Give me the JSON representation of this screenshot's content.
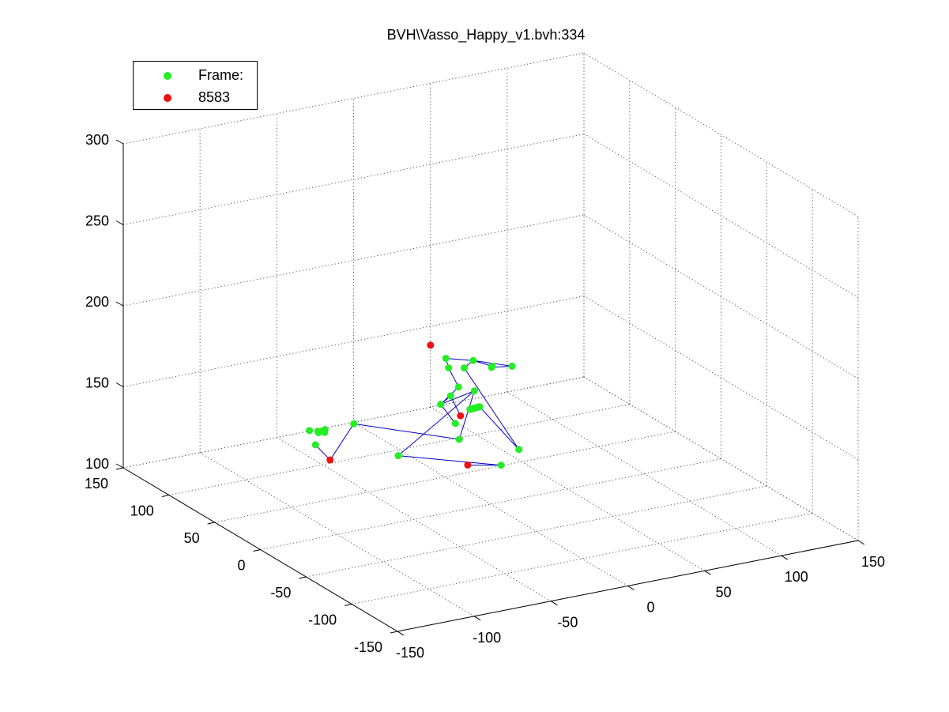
{
  "chart_data": {
    "type": "scatter",
    "title": "BVH\\Vasso_Happy_v1.bvh:334",
    "xlim": [
      -150,
      150
    ],
    "ylim": [
      -150,
      150
    ],
    "zlim": [
      100,
      300
    ],
    "x_ticks": [
      -150,
      -100,
      -50,
      0,
      50,
      100,
      150
    ],
    "y_ticks": [
      -150,
      -100,
      -50,
      0,
      50,
      100,
      150
    ],
    "z_ticks": [
      100,
      150,
      200,
      250,
      300
    ],
    "grid": true,
    "legend": {
      "placement": "top-left",
      "entries": [
        {
          "label": "Frame:",
          "color": "#00ff00"
        },
        {
          "label": "8583",
          "color": "#ff0000"
        }
      ]
    },
    "colors": {
      "joint": "#22ee22",
      "end_site": "#ee1111",
      "bone": "#0000cc",
      "grid": "#555555"
    },
    "joints": [
      {
        "x": 0.4,
        "y": 55.4,
        "z": 142.9
      },
      {
        "x": 1.1,
        "y": 19.7,
        "z": 163.1
      },
      {
        "x": -27.6,
        "y": -12.0,
        "z": 149.2
      },
      {
        "x": -67.5,
        "y": 36.4,
        "z": 150.0
      },
      {
        "x": -76.9,
        "y": 62.5,
        "z": 130.0
      },
      {
        "x": -28.6,
        "y": 53.1,
        "z": 117.4
      },
      {
        "x": 3.1,
        "y": -6.1,
        "z": 125.5
      },
      {
        "x": 9.7,
        "y": 55.0,
        "z": 129.5
      },
      {
        "x": 14.4,
        "y": 68.1,
        "z": 141.2
      },
      {
        "x": 10.3,
        "y": 52.5,
        "z": 152.7
      },
      {
        "x": 8.3,
        "y": 60.0,
        "z": 162.4
      },
      {
        "x": 5.3,
        "y": 58.0,
        "z": 169.5
      },
      {
        "x": 16.6,
        "y": 47.1,
        "z": 169.7
      },
      {
        "x": 4.7,
        "y": 36.9,
        "z": 170.8
      },
      {
        "x": 22.5,
        "y": 36.2,
        "z": 168.8
      },
      {
        "x": 16.0,
        "y": 25.9,
        "z": 172.8
      },
      {
        "x": 29.0,
        "y": 25.4,
        "z": 171.2
      },
      {
        "x": 2.7,
        "y": -26.3,
        "z": 142.1
      },
      {
        "x": -22.0,
        "y": -24.8,
        "z": 172.6
      },
      {
        "x": -23.1,
        "y": -25.5,
        "z": 172.9
      },
      {
        "x": -24.2,
        "y": -26.2,
        "z": 173.1
      },
      {
        "x": -25.3,
        "y": -26.9,
        "z": 173.4
      },
      {
        "x": -26.5,
        "y": -27.6,
        "z": 173.7
      },
      {
        "x": -27.6,
        "y": -28.3,
        "z": 173.9
      },
      {
        "x": -28.7,
        "y": -29.0,
        "z": 174.2
      },
      {
        "x": -29.8,
        "y": -29.7,
        "z": 174.5
      },
      {
        "x": -30.9,
        "y": -30.4,
        "z": 174.7
      },
      {
        "x": -32.0,
        "y": -31.1,
        "z": 175.0
      },
      {
        "x": -72.6,
        "y": 76.4,
        "z": 133.3
      },
      {
        "x": -69.6,
        "y": 72.2,
        "z": 133.7
      },
      {
        "x": -68.1,
        "y": 74.0,
        "z": 132.0
      },
      {
        "x": -66.6,
        "y": 73.5,
        "z": 132.7
      },
      {
        "x": -65.1,
        "y": 72.0,
        "z": 134.0
      },
      {
        "x": -63.6,
        "y": 74.8,
        "z": 131.0
      }
    ],
    "end_sites": [
      {
        "x": -87.5,
        "y": 28.7,
        "z": 134.0
      },
      {
        "x": -17.3,
        "y": -3.9,
        "z": 128.7
      },
      {
        "x": 13.5,
        "y": 55.7,
        "z": 133.3
      },
      {
        "x": -8.0,
        "y": 52.4,
        "z": 182.0
      }
    ],
    "bones": [
      [
        [
          0.4,
          55.4,
          142.9
        ],
        [
          1.1,
          19.7,
          163.1
        ]
      ],
      [
        [
          1.1,
          19.7,
          163.1
        ],
        [
          -27.6,
          -12.0,
          149.2
        ]
      ],
      [
        [
          -27.6,
          -12.0,
          149.2
        ],
        [
          -67.5,
          36.4,
          150.0
        ]
      ],
      [
        [
          -67.5,
          36.4,
          150.0
        ],
        [
          -87.5,
          28.7,
          134.0
        ]
      ],
      [
        [
          -87.5,
          28.7,
          134.0
        ],
        [
          -76.9,
          62.5,
          130.0
        ]
      ],
      [
        [
          1.1,
          19.7,
          163.1
        ],
        [
          -28.6,
          53.1,
          117.4
        ]
      ],
      [
        [
          -28.6,
          53.1,
          117.4
        ],
        [
          3.1,
          -6.1,
          125.5
        ]
      ],
      [
        [
          3.1,
          -6.1,
          125.5
        ],
        [
          -17.3,
          -3.9,
          128.7
        ]
      ],
      [
        [
          0.4,
          55.4,
          142.9
        ],
        [
          9.7,
          55.0,
          129.5
        ]
      ],
      [
        [
          0.4,
          55.4,
          142.9
        ],
        [
          14.4,
          68.1,
          141.2
        ]
      ],
      [
        [
          14.4,
          68.1,
          141.2
        ],
        [
          13.5,
          55.7,
          133.3
        ]
      ],
      [
        [
          0.4,
          55.4,
          142.9
        ],
        [
          10.3,
          52.5,
          152.7
        ]
      ],
      [
        [
          10.3,
          52.5,
          152.7
        ],
        [
          8.3,
          60.0,
          162.4
        ]
      ],
      [
        [
          8.3,
          60.0,
          162.4
        ],
        [
          5.3,
          58.0,
          169.5
        ]
      ],
      [
        [
          5.3,
          58.0,
          169.5
        ],
        [
          16.6,
          47.1,
          169.7
        ]
      ],
      [
        [
          16.6,
          47.1,
          169.7
        ],
        [
          29.0,
          25.4,
          171.2
        ]
      ],
      [
        [
          29.0,
          25.4,
          171.2
        ],
        [
          16.0,
          25.9,
          172.8
        ]
      ],
      [
        [
          16.6,
          47.1,
          169.7
        ],
        [
          4.7,
          36.9,
          170.8
        ]
      ],
      [
        [
          4.7,
          36.9,
          170.8
        ],
        [
          2.7,
          -26.3,
          142.1
        ]
      ],
      [
        [
          2.7,
          -26.3,
          142.1
        ],
        [
          -22.0,
          -24.8,
          172.6
        ]
      ],
      [
        [
          16.6,
          47.1,
          169.7
        ],
        [
          22.5,
          36.2,
          168.8
        ]
      ]
    ]
  }
}
